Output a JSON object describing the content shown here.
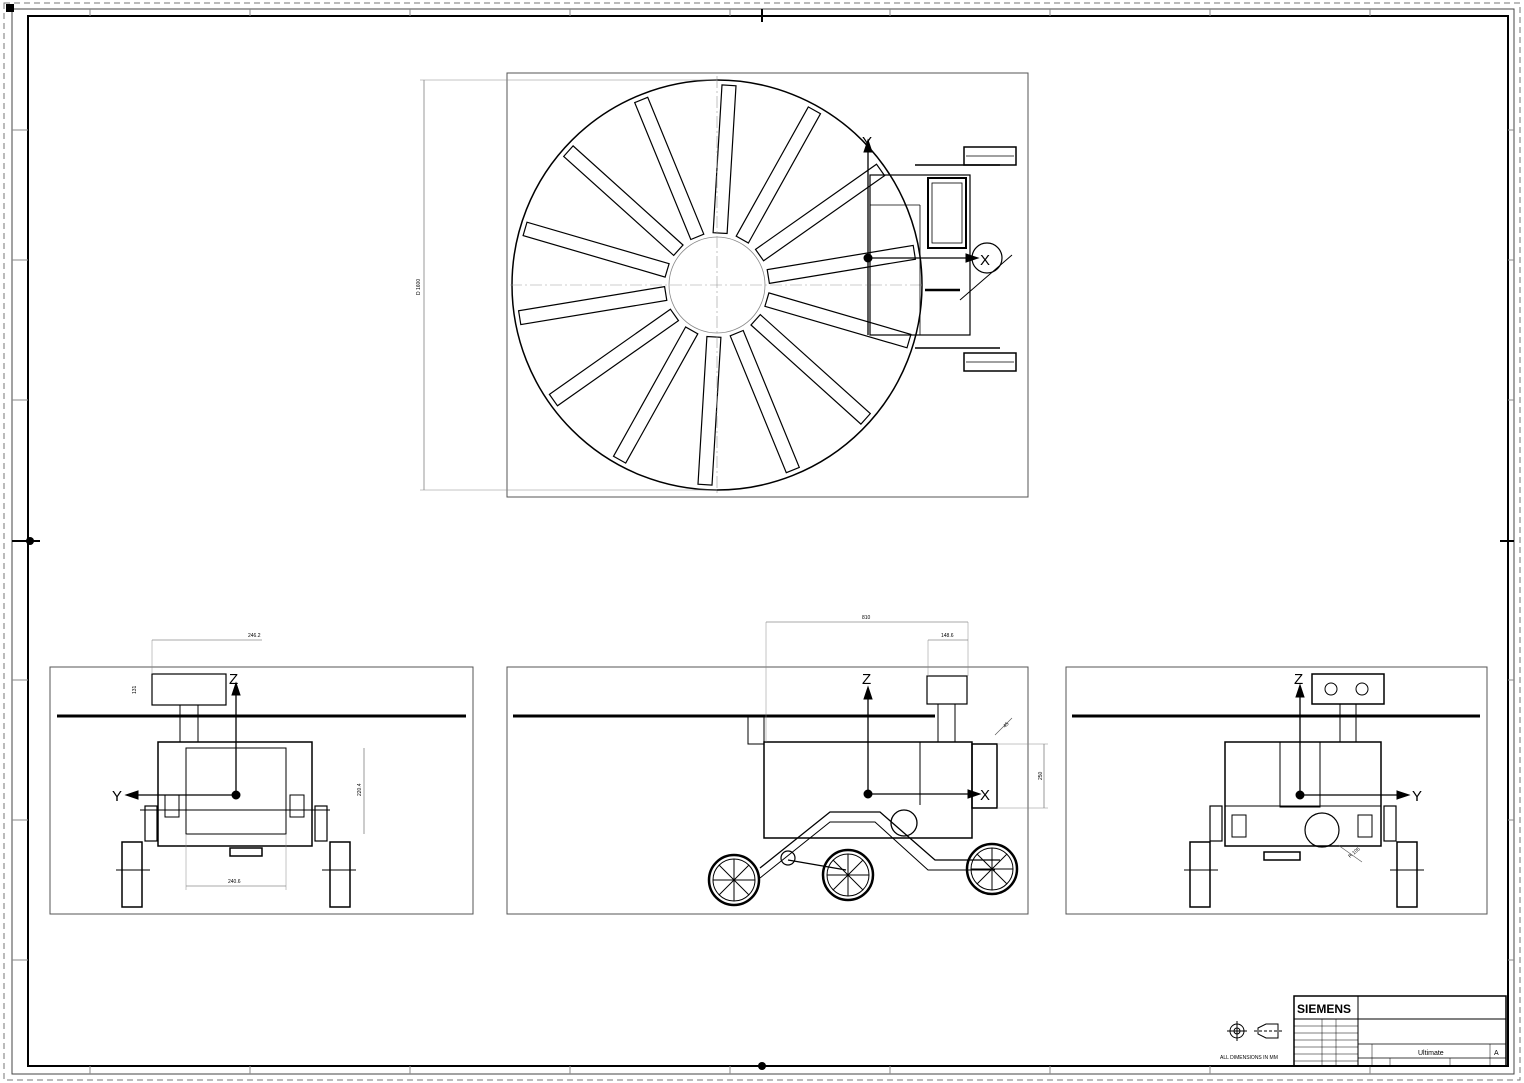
{
  "title_block": {
    "brand": "SIEMENS",
    "title": "Ultimate",
    "revision": "A",
    "note": "ALL DIMENSIONS IN MM"
  },
  "views": {
    "top": {
      "dimension": "D 1600"
    },
    "front": {
      "dim_width": "246.2",
      "dim_height": "220.4",
      "dim_box_height": "131",
      "dim_base": "240.6",
      "axis_y": "Y",
      "axis_z": "Z"
    },
    "side": {
      "dim_length": "810",
      "dim_box": "148.6",
      "dim_height": "250",
      "dim_angle": "45",
      "axis_x": "X",
      "axis_z": "Z"
    },
    "rear": {
      "dim_radius": "R 105",
      "axis_y": "Y",
      "axis_z": "Z"
    },
    "top_axes": {
      "x": "X",
      "y": "Y"
    }
  },
  "icons": [
    "projection-symbol-icon",
    "cone-symbol-icon"
  ]
}
